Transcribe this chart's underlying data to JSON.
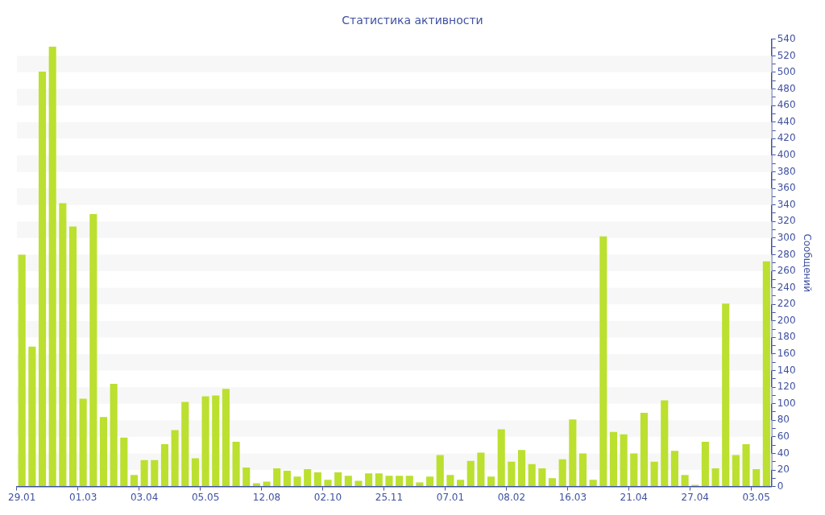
{
  "chart_data": {
    "type": "bar",
    "title": "Статистика активности",
    "ylabel": "Сообщений",
    "color": "#bbe02f",
    "categories": [
      "29.01",
      null,
      null,
      null,
      null,
      null,
      "01.03",
      null,
      null,
      null,
      null,
      null,
      "03.04",
      null,
      null,
      null,
      null,
      null,
      "05.05",
      null,
      null,
      null,
      null,
      null,
      "12.08",
      null,
      null,
      null,
      null,
      null,
      "02.10",
      null,
      null,
      null,
      null,
      null,
      "25.11",
      null,
      null,
      null,
      null,
      null,
      "07.01",
      null,
      null,
      null,
      null,
      null,
      "08.02",
      null,
      null,
      null,
      null,
      null,
      "16.03",
      null,
      null,
      null,
      null,
      null,
      "21.04",
      null,
      null,
      null,
      null,
      null,
      "27.04",
      null,
      null,
      null,
      null,
      null,
      "03.05",
      null
    ],
    "values": [
      280,
      169,
      501,
      531,
      342,
      314,
      106,
      329,
      84,
      124,
      59,
      14,
      32,
      32,
      51,
      68,
      102,
      34,
      109,
      110,
      118,
      54,
      23,
      4,
      6,
      22,
      19,
      12,
      21,
      17,
      8,
      17,
      13,
      7,
      16,
      16,
      13,
      13,
      13,
      5,
      12,
      38,
      14,
      8,
      31,
      41,
      12,
      69,
      30,
      44,
      27,
      22,
      10,
      33,
      81,
      40,
      8,
      302,
      66,
      63,
      40,
      89,
      30,
      104,
      43,
      14,
      2,
      54,
      22,
      221,
      38,
      51,
      21,
      272
    ],
    "ylim": [
      0,
      540
    ],
    "yticks": [
      0,
      {
        "value": 10,
        "label": null
      },
      20,
      {
        "value": 30,
        "label": null
      },
      40,
      {
        "value": 50,
        "label": null
      },
      60,
      {
        "value": 70,
        "label": null
      },
      80,
      {
        "value": 90,
        "label": null
      },
      100,
      {
        "value": 110,
        "label": null
      },
      120,
      {
        "value": 130,
        "label": null
      },
      140,
      {
        "value": 150,
        "label": null
      },
      160,
      {
        "value": 170,
        "label": null
      },
      180,
      {
        "value": 190,
        "label": null
      },
      200,
      {
        "value": 210,
        "label": null
      },
      220,
      {
        "value": 230,
        "label": null
      },
      240,
      {
        "value": 250,
        "label": null
      },
      260,
      {
        "value": 270,
        "label": null
      },
      280,
      {
        "value": 290,
        "label": null
      },
      300,
      {
        "value": 310,
        "label": null
      },
      320,
      {
        "value": 330,
        "label": null
      },
      340,
      {
        "value": 350,
        "label": null
      },
      360,
      {
        "value": 370,
        "label": null
      },
      380,
      {
        "value": 390,
        "label": null
      },
      400,
      {
        "value": 410,
        "label": null
      },
      420,
      {
        "value": 430,
        "label": null
      },
      440,
      {
        "value": 450,
        "label": null
      },
      460,
      {
        "value": 470,
        "label": null
      },
      480,
      {
        "value": 490,
        "label": null
      },
      500,
      {
        "value": 510,
        "label": null
      },
      520,
      {
        "value": 530,
        "label": null
      },
      540
    ],
    "bands": [
      {
        "axis": "y",
        "from": 20,
        "to": 40,
        "color": "#f7f7f7"
      },
      {
        "axis": "y",
        "from": 60,
        "to": 80,
        "color": "#f7f7f7"
      },
      {
        "axis": "y",
        "from": 100,
        "to": 120,
        "color": "#f7f7f7"
      },
      {
        "axis": "y",
        "from": 140,
        "to": 160,
        "color": "#f7f7f7"
      },
      {
        "axis": "y",
        "from": 180,
        "to": 200,
        "color": "#f7f7f7"
      },
      {
        "axis": "y",
        "from": 220,
        "to": 240,
        "color": "#f7f7f7"
      },
      {
        "axis": "y",
        "from": 260,
        "to": 280,
        "color": "#f7f7f7"
      },
      {
        "axis": "y",
        "from": 300,
        "to": 320,
        "color": "#f7f7f7"
      },
      {
        "axis": "y",
        "from": 340,
        "to": 360,
        "color": "#f7f7f7"
      },
      {
        "axis": "y",
        "from": 380,
        "to": 400,
        "color": "#f7f7f7"
      },
      {
        "axis": "y",
        "from": 420,
        "to": 440,
        "color": "#f7f7f7"
      },
      {
        "axis": "y",
        "from": 460,
        "to": 480,
        "color": "#f7f7f7"
      },
      {
        "axis": "y",
        "from": 500,
        "to": 520,
        "color": "#f7f7f7"
      }
    ],
    "legend": false
  }
}
